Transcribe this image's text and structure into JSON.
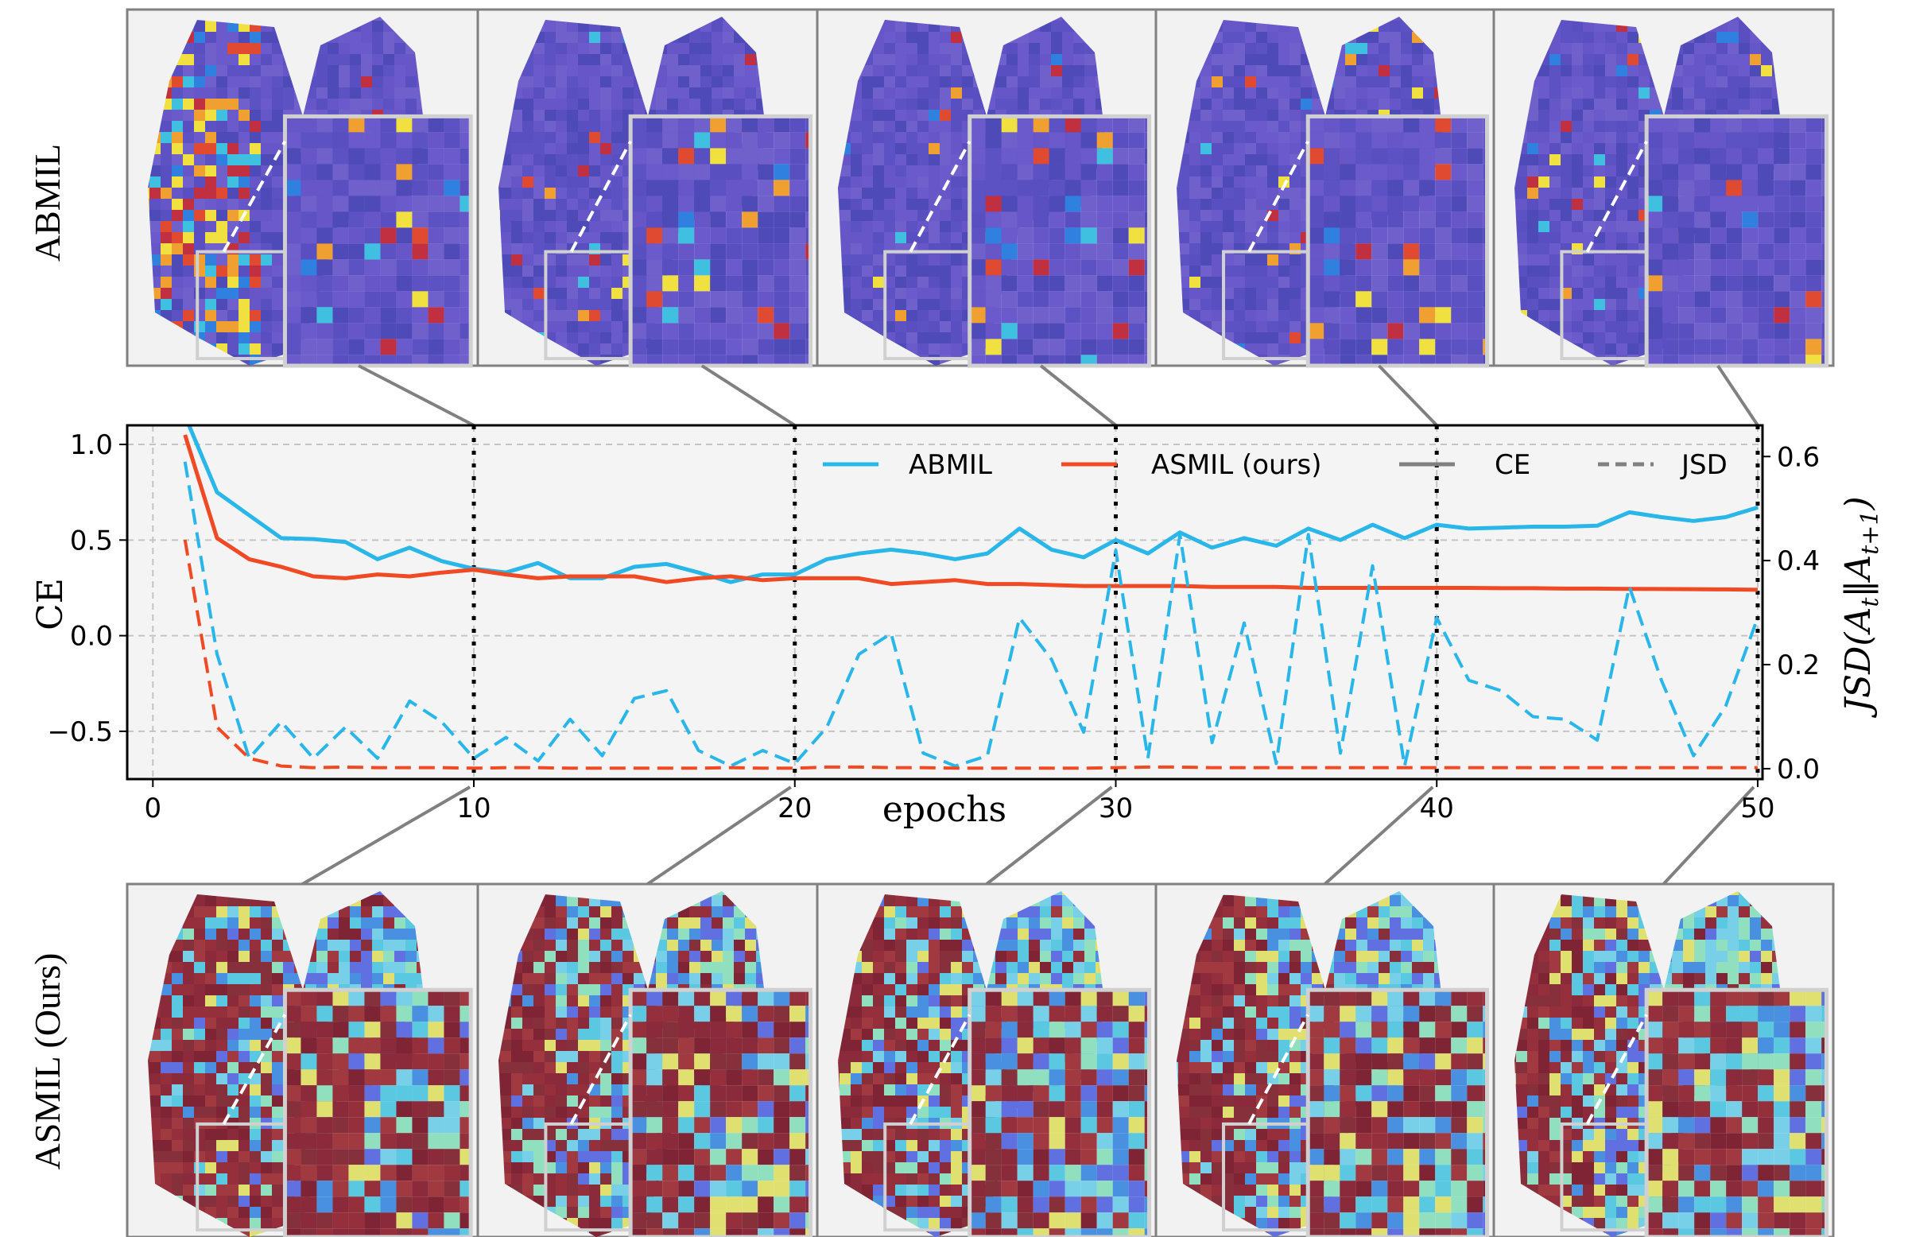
{
  "row_labels": {
    "top": "ABMIL",
    "bottom": "ASMIL (Ours)"
  },
  "panel_epochs": [
    10,
    20,
    30,
    40,
    50
  ],
  "colors": {
    "abmil": "#29b6e8",
    "asmil": "#ef4a24",
    "legend_gray": "#808080",
    "panel_bg": "#f2f2f2"
  },
  "chart_data": {
    "type": "line",
    "xlabel": "epochs",
    "ylabel": "CE",
    "ylabel_right": {
      "base": "JSD(A",
      "sub1": "t",
      "mid": "‖A",
      "sub2": "t+1",
      "end": ")"
    },
    "xlim": [
      0,
      50
    ],
    "ylim": [
      -0.75,
      1.1
    ],
    "ylim_right": [
      -0.02,
      0.66
    ],
    "xticks": [
      "0",
      "10",
      "20",
      "30",
      "40",
      "50"
    ],
    "yticks": [
      "−0.5",
      "0.0",
      "0.5",
      "1.0"
    ],
    "yticks_right": [
      "0.0",
      "0.2",
      "0.4",
      "0.6"
    ],
    "grid": true,
    "legend_position": "top-right",
    "legend": [
      "ABMIL",
      "ASMIL (ours)",
      "CE",
      "JSD"
    ],
    "highlight_epochs": [
      10,
      20,
      30,
      40,
      50
    ],
    "x": [
      1,
      2,
      3,
      4,
      5,
      6,
      7,
      8,
      9,
      10,
      11,
      12,
      13,
      14,
      15,
      16,
      17,
      18,
      19,
      20,
      21,
      22,
      23,
      24,
      25,
      26,
      27,
      28,
      29,
      30,
      31,
      32,
      33,
      34,
      35,
      36,
      37,
      38,
      39,
      40,
      41,
      42,
      43,
      44,
      45,
      46,
      47,
      48,
      49,
      50
    ],
    "series": [
      {
        "name": "ABMIL",
        "metric": "CE",
        "axis": "left",
        "style": "solid",
        "values": [
          1.15,
          0.75,
          0.63,
          0.51,
          0.505,
          0.49,
          0.4,
          0.46,
          0.39,
          0.35,
          0.33,
          0.38,
          0.3,
          0.3,
          0.36,
          0.375,
          0.33,
          0.28,
          0.32,
          0.32,
          0.4,
          0.43,
          0.45,
          0.43,
          0.4,
          0.43,
          0.56,
          0.45,
          0.41,
          0.5,
          0.43,
          0.54,
          0.46,
          0.51,
          0.47,
          0.56,
          0.5,
          0.58,
          0.51,
          0.58,
          0.56,
          0.565,
          0.57,
          0.57,
          0.575,
          0.645,
          0.62,
          0.6,
          0.62,
          0.67
        ]
      },
      {
        "name": "ASMIL (ours)",
        "metric": "CE",
        "axis": "left",
        "style": "solid",
        "values": [
          1.05,
          0.51,
          0.4,
          0.36,
          0.31,
          0.3,
          0.32,
          0.31,
          0.33,
          0.345,
          0.32,
          0.3,
          0.31,
          0.31,
          0.31,
          0.28,
          0.3,
          0.31,
          0.29,
          0.3,
          0.3,
          0.3,
          0.27,
          0.28,
          0.29,
          0.27,
          0.27,
          0.265,
          0.26,
          0.26,
          0.26,
          0.26,
          0.255,
          0.255,
          0.255,
          0.25,
          0.25,
          0.25,
          0.25,
          0.25,
          0.25,
          0.248,
          0.248,
          0.246,
          0.246,
          0.245,
          0.244,
          0.243,
          0.242,
          0.24
        ]
      },
      {
        "name": "ABMIL",
        "metric": "JSD",
        "axis": "right",
        "style": "dashed",
        "values": [
          0.59,
          0.22,
          0.02,
          0.09,
          0.02,
          0.08,
          0.02,
          0.13,
          0.09,
          0.02,
          0.06,
          0.015,
          0.095,
          0.025,
          0.135,
          0.15,
          0.035,
          0.005,
          0.035,
          0.01,
          0.08,
          0.22,
          0.26,
          0.03,
          0.005,
          0.025,
          0.29,
          0.21,
          0.07,
          0.42,
          0.02,
          0.45,
          0.05,
          0.28,
          0.01,
          0.45,
          0.03,
          0.39,
          0.005,
          0.29,
          0.17,
          0.15,
          0.1,
          0.095,
          0.055,
          0.35,
          0.17,
          0.025,
          0.12,
          0.29
        ]
      },
      {
        "name": "ASMIL (ours)",
        "metric": "JSD",
        "axis": "right",
        "style": "dashed",
        "values": [
          0.44,
          0.08,
          0.02,
          0.005,
          0.002,
          0.003,
          0.002,
          0.002,
          0.002,
          0.001,
          0.002,
          0.002,
          0.001,
          0.001,
          0.001,
          0.001,
          0.001,
          0.002,
          0.001,
          0.001,
          0.003,
          0.003,
          0.002,
          0.002,
          0.001,
          0.001,
          0.001,
          0.001,
          0.001,
          0.002,
          0.003,
          0.003,
          0.002,
          0.002,
          0.002,
          0.002,
          0.002,
          0.002,
          0.002,
          0.002,
          0.002,
          0.002,
          0.002,
          0.002,
          0.002,
          0.002,
          0.002,
          0.002,
          0.002,
          0.002
        ]
      }
    ]
  }
}
